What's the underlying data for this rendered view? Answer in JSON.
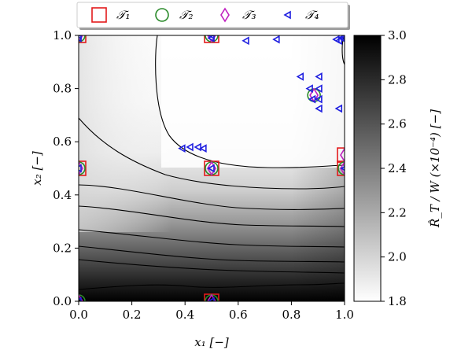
{
  "chart_data": {
    "type": "heatmap",
    "title": "",
    "xlabel": "x₁ [−]",
    "ylabel": "x₂ [−]",
    "xlim": [
      0.0,
      1.0
    ],
    "ylim": [
      0.0,
      1.0
    ],
    "xticks": [
      "0.0",
      "0.2",
      "0.4",
      "0.6",
      "0.8",
      "1.0"
    ],
    "yticks": [
      "0.0",
      "0.2",
      "0.4",
      "0.6",
      "0.8",
      "1.0"
    ],
    "colorbar": {
      "label": "R̂_T / W (×10⁻⁴) [−]",
      "range": [
        1.8,
        3.0
      ],
      "ticks": [
        "1.8",
        "2.0",
        "2.2",
        "2.4",
        "2.6",
        "2.8",
        "3.0"
      ],
      "colormap": "gray_r",
      "low_color": "#ffffff",
      "high_color": "#000000"
    },
    "grid": false,
    "legend": {
      "placement": "top-center",
      "entries": [
        {
          "label": "𝒯₁",
          "marker": "square",
          "color": "#e31a1c"
        },
        {
          "label": "𝒯₂",
          "marker": "circle",
          "color": "#2a8a2a"
        },
        {
          "label": "𝒯₃",
          "marker": "diamond",
          "color": "#c020c0"
        },
        {
          "label": "𝒯₄",
          "marker": "triangle-left",
          "color": "#1f1fe0"
        }
      ]
    },
    "series": [
      {
        "name": "𝒯₁",
        "marker": "square",
        "color": "#e31a1c",
        "points": [
          [
            0.0,
            1.0
          ],
          [
            0.5,
            1.0
          ],
          [
            0.0,
            0.5
          ],
          [
            0.5,
            0.5
          ],
          [
            1.0,
            0.5
          ],
          [
            1.0,
            0.55
          ],
          [
            0.5,
            0.0
          ]
        ]
      },
      {
        "name": "𝒯₂",
        "marker": "circle",
        "color": "#2a8a2a",
        "points": [
          [
            0.0,
            1.0
          ],
          [
            0.5,
            1.0
          ],
          [
            0.0,
            0.5
          ],
          [
            0.5,
            0.5
          ],
          [
            1.0,
            0.5
          ],
          [
            0.5,
            0.0
          ],
          [
            0.0,
            0.0
          ],
          [
            0.885,
            0.775
          ]
        ]
      },
      {
        "name": "𝒯₃",
        "marker": "diamond",
        "color": "#c020c0",
        "points": [
          [
            0.0,
            1.0
          ],
          [
            0.5,
            1.0
          ],
          [
            0.0,
            0.5
          ],
          [
            0.5,
            0.5
          ],
          [
            1.0,
            0.5
          ],
          [
            1.0,
            0.55
          ],
          [
            0.5,
            0.0
          ],
          [
            0.0,
            0.0
          ],
          [
            0.885,
            0.775
          ]
        ]
      },
      {
        "name": "𝒯₄",
        "marker": "triangle-left",
        "color": "#1f1fe0",
        "points": [
          [
            0.0,
            1.0
          ],
          [
            0.0,
            0.99
          ],
          [
            0.5,
            1.0
          ],
          [
            0.5,
            0.99
          ],
          [
            0.63,
            0.98
          ],
          [
            0.745,
            0.985
          ],
          [
            0.97,
            0.985
          ],
          [
            0.99,
            0.99
          ],
          [
            1.0,
            0.99
          ],
          [
            0.98,
            0.98
          ],
          [
            0.39,
            0.575
          ],
          [
            0.42,
            0.58
          ],
          [
            0.45,
            0.58
          ],
          [
            0.47,
            0.575
          ],
          [
            0.5,
            0.5
          ],
          [
            0.835,
            0.845
          ],
          [
            0.905,
            0.845
          ],
          [
            0.87,
            0.8
          ],
          [
            0.905,
            0.8
          ],
          [
            0.88,
            0.76
          ],
          [
            0.905,
            0.76
          ],
          [
            0.905,
            0.725
          ],
          [
            0.98,
            0.725
          ],
          [
            0.0,
            0.5
          ],
          [
            1.0,
            0.5
          ],
          [
            0.5,
            0.0
          ],
          [
            0.0,
            0.0
          ]
        ]
      }
    ]
  }
}
